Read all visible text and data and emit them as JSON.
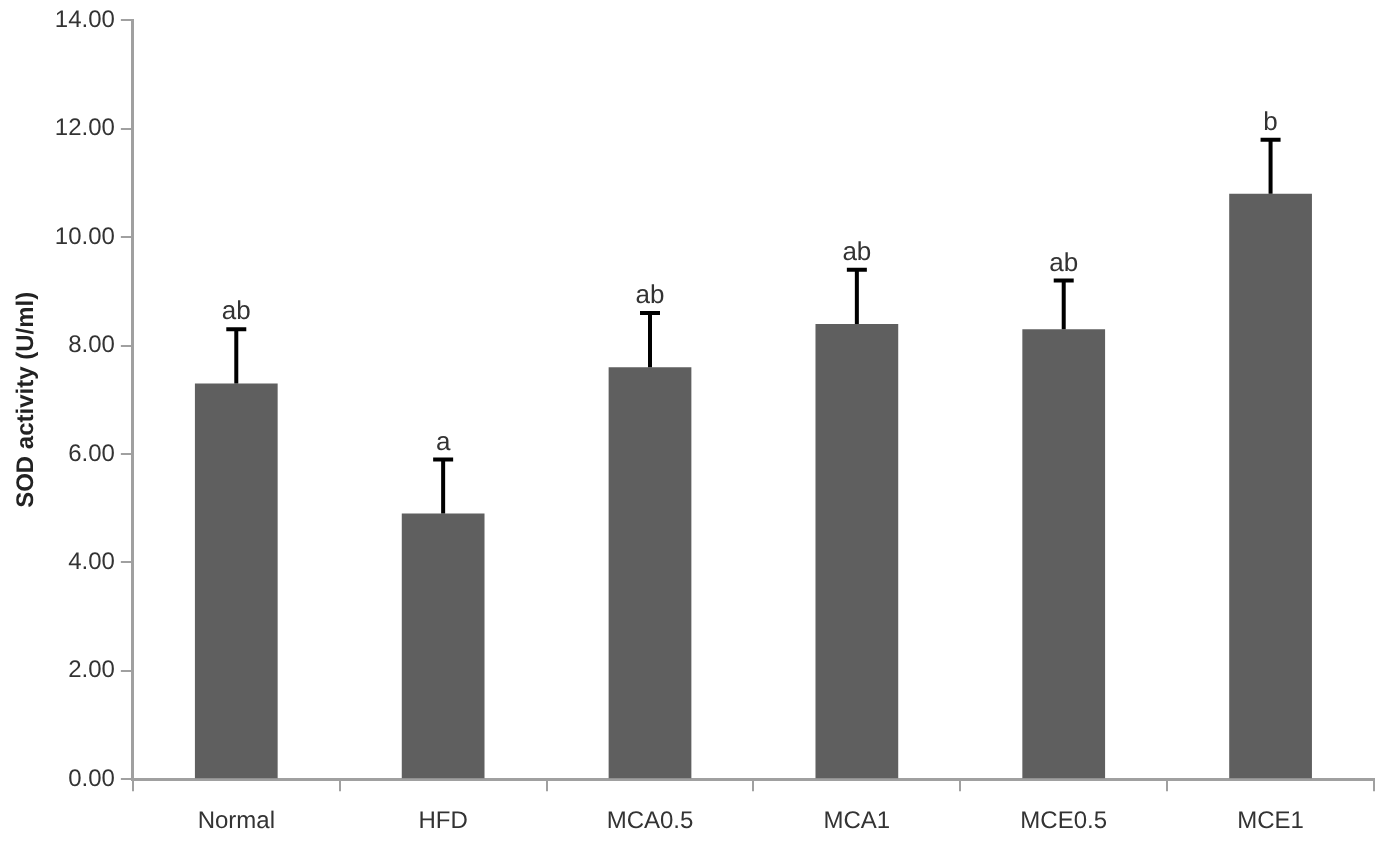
{
  "chart_data": {
    "type": "bar",
    "ylabel": "SOD activity (U/ml)",
    "categories": [
      "Normal",
      "HFD",
      "MCA0.5",
      "MCA1",
      "MCE0.5",
      "MCE1"
    ],
    "values": [
      7.3,
      4.9,
      7.6,
      8.4,
      8.3,
      10.8
    ],
    "errors": [
      1.0,
      1.0,
      1.0,
      1.0,
      0.9,
      1.0
    ],
    "color": "#5f5f5f",
    "ylim": [
      0,
      14
    ],
    "yticks": [
      {
        "value": 0,
        "label": "0.00"
      },
      {
        "value": 2,
        "label": "2.00"
      },
      {
        "value": 4,
        "label": "4.00"
      },
      {
        "value": 6,
        "label": "6.00"
      },
      {
        "value": 8,
        "label": "8.00"
      },
      {
        "value": 10,
        "label": "10.00"
      },
      {
        "value": 12,
        "label": "12.00"
      },
      {
        "value": 14,
        "label": "14.00"
      }
    ],
    "annotations": [
      {
        "text": "ab",
        "x": "Normal",
        "y": 8.3
      },
      {
        "text": "a",
        "x": "HFD",
        "y": 5.9
      },
      {
        "text": "ab",
        "x": "MCA0.5",
        "y": 8.6
      },
      {
        "text": "ab",
        "x": "MCA1",
        "y": 9.4
      },
      {
        "text": "ab",
        "x": "MCE0.5",
        "y": 9.2
      },
      {
        "text": "b",
        "x": "MCE1",
        "y": 11.8
      }
    ],
    "grid": false,
    "legend": false
  }
}
